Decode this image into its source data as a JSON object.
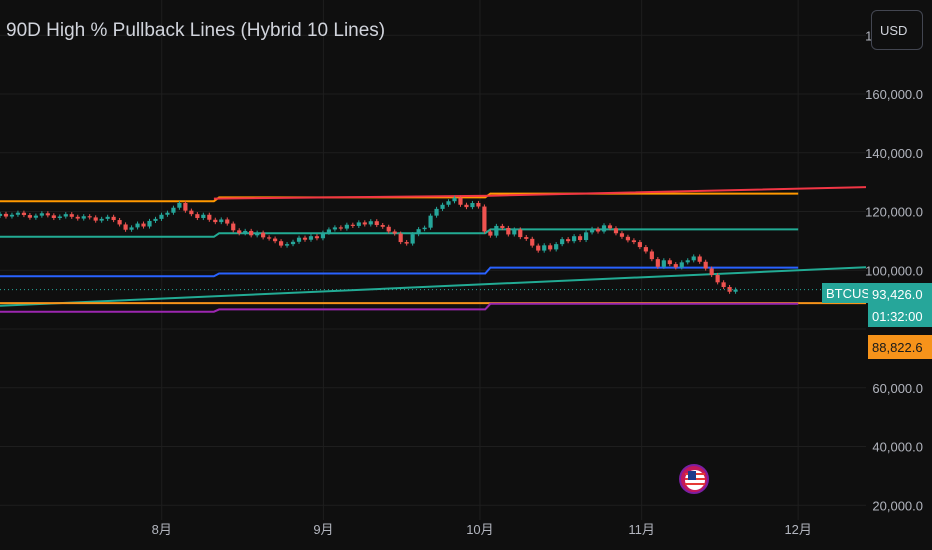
{
  "title": "90D High % Pullback Lines (Hybrid 10 Lines)",
  "currency_button": "USD",
  "symbol_tag": "BTCUSD",
  "last_price_label": "93,426.0",
  "countdown_label": "01:32:00",
  "level_label": "88,822.6",
  "event_icon": "us-flag-icon",
  "colors": {
    "background": "#0f0f0f",
    "grid": "#1e1e1e",
    "up": "#26a69a",
    "down": "#ef5350",
    "orange": "#ff9800",
    "red": "#f23645",
    "teal": "#22ab94",
    "blue": "#2962ff",
    "purple": "#9c27b0",
    "dark_orange": "#f7931a",
    "axis_text": "#b2b5be"
  },
  "chart_data": {
    "type": "candlestick",
    "y_axis": {
      "ticks": [
        "180,000.0",
        "160,000.0",
        "140,000.0",
        "120,000.0",
        "100,000.0",
        "60,000.0",
        "40,000.0",
        "20,000.0"
      ],
      "range": [
        15000,
        192000
      ]
    },
    "x_axis": {
      "ticks": [
        "8月",
        "9月",
        "10月",
        "11月",
        "12月"
      ],
      "range_days": [
        -31,
        135
      ],
      "tick_days": [
        0,
        31,
        61,
        92,
        122
      ]
    },
    "candles": [
      [
        118500,
        119200
      ],
      [
        119200,
        118300
      ],
      [
        118300,
        118900
      ],
      [
        118900,
        119600
      ],
      [
        119600,
        118800
      ],
      [
        118800,
        117900
      ],
      [
        117900,
        118600
      ],
      [
        118600,
        119400
      ],
      [
        119400,
        118700
      ],
      [
        118700,
        117800
      ],
      [
        117800,
        118300
      ],
      [
        118300,
        119100
      ],
      [
        119100,
        118200
      ],
      [
        118200,
        117600
      ],
      [
        117600,
        118400
      ],
      [
        118400,
        118000
      ],
      [
        118000,
        116900
      ],
      [
        116900,
        117500
      ],
      [
        117500,
        118200
      ],
      [
        118200,
        117100
      ],
      [
        117100,
        115600
      ],
      [
        115600,
        113800
      ],
      [
        113800,
        114600
      ],
      [
        114600,
        115900
      ],
      [
        115900,
        114900
      ],
      [
        114900,
        116800
      ],
      [
        116800,
        117500
      ],
      [
        117500,
        118900
      ],
      [
        118900,
        119600
      ],
      [
        119600,
        121300
      ],
      [
        121300,
        122900
      ],
      [
        122900,
        120300
      ],
      [
        120300,
        119100
      ],
      [
        119100,
        117800
      ],
      [
        117800,
        118900
      ],
      [
        118900,
        117200
      ],
      [
        117200,
        116400
      ],
      [
        116400,
        117300
      ],
      [
        117300,
        115900
      ],
      [
        115900,
        113600
      ],
      [
        113600,
        112600
      ],
      [
        112600,
        113400
      ],
      [
        113400,
        111900
      ],
      [
        111900,
        112800
      ],
      [
        112800,
        111200
      ],
      [
        111200,
        110800
      ],
      [
        110800,
        109900
      ],
      [
        109900,
        108400
      ],
      [
        108400,
        108900
      ],
      [
        108900,
        109700
      ],
      [
        109700,
        111100
      ],
      [
        111100,
        110400
      ],
      [
        110400,
        111600
      ],
      [
        111600,
        110900
      ],
      [
        110900,
        112800
      ],
      [
        112800,
        113900
      ],
      [
        113900,
        114600
      ],
      [
        114600,
        114200
      ],
      [
        114200,
        115500
      ],
      [
        115500,
        115100
      ],
      [
        115100,
        116300
      ],
      [
        116300,
        115600
      ],
      [
        115600,
        116700
      ],
      [
        116700,
        115400
      ],
      [
        115400,
        114800
      ],
      [
        114800,
        113200
      ],
      [
        113200,
        112500
      ],
      [
        112500,
        109600
      ],
      [
        109600,
        109100
      ],
      [
        109100,
        112300
      ],
      [
        112300,
        114000
      ],
      [
        114000,
        114500
      ],
      [
        114500,
        118600
      ],
      [
        118600,
        120900
      ],
      [
        120900,
        122300
      ],
      [
        122300,
        123500
      ],
      [
        123500,
        124700
      ],
      [
        124700,
        122300
      ],
      [
        122300,
        121500
      ],
      [
        121500,
        122900
      ],
      [
        122900,
        121700
      ],
      [
        121700,
        113200
      ],
      [
        113200,
        111800
      ],
      [
        111800,
        115100
      ],
      [
        115100,
        114400
      ],
      [
        114400,
        112200
      ],
      [
        112200,
        113900
      ],
      [
        113900,
        111300
      ],
      [
        111300,
        110700
      ],
      [
        110700,
        108400
      ],
      [
        108400,
        106700
      ],
      [
        106700,
        108500
      ],
      [
        108500,
        107100
      ],
      [
        107100,
        108900
      ],
      [
        108900,
        110600
      ],
      [
        110600,
        109900
      ],
      [
        109900,
        111600
      ],
      [
        111600,
        110300
      ],
      [
        110300,
        112900
      ],
      [
        112900,
        114100
      ],
      [
        114100,
        113200
      ],
      [
        113200,
        115300
      ],
      [
        115300,
        114300
      ],
      [
        114300,
        112600
      ],
      [
        112600,
        111400
      ],
      [
        111400,
        110200
      ],
      [
        110200,
        109600
      ],
      [
        109600,
        107900
      ],
      [
        107900,
        106400
      ],
      [
        106400,
        103800
      ],
      [
        103800,
        101200
      ],
      [
        101200,
        103400
      ],
      [
        103400,
        102100
      ],
      [
        102100,
        101000
      ],
      [
        101000,
        102700
      ],
      [
        102700,
        103400
      ],
      [
        103400,
        104700
      ],
      [
        104700,
        102900
      ],
      [
        102900,
        100600
      ],
      [
        100600,
        98400
      ],
      [
        98400,
        95900
      ],
      [
        95900,
        94300
      ],
      [
        94300,
        92700
      ],
      [
        92700,
        93426
      ]
    ],
    "lines": [
      {
        "color": "#ff9800",
        "points": [
          [
            -31,
            123500
          ],
          [
            10,
            123500
          ],
          [
            11,
            124800
          ],
          [
            62,
            124800
          ],
          [
            63,
            126100
          ],
          [
            122,
            126100
          ]
        ]
      },
      {
        "color": "#f23645",
        "points": [
          [
            10,
            124400
          ],
          [
            63,
            125400
          ],
          [
            135,
            128300
          ]
        ]
      },
      {
        "color": "#22ab94",
        "points": [
          [
            -31,
            111400
          ],
          [
            10,
            111400
          ],
          [
            11,
            112600
          ],
          [
            62,
            112600
          ],
          [
            63,
            113900
          ],
          [
            122,
            113900
          ]
        ]
      },
      {
        "color": "#2962ff",
        "points": [
          [
            -31,
            98000
          ],
          [
            10,
            98000
          ],
          [
            11,
            98900
          ],
          [
            62,
            98900
          ],
          [
            63,
            100900
          ],
          [
            122,
            100900
          ]
        ]
      },
      {
        "color": "#22ab94",
        "points": [
          [
            -31,
            87900
          ],
          [
            135,
            101000
          ]
        ]
      },
      {
        "color": "#f7931a",
        "points": [
          [
            -31,
            88822.6
          ],
          [
            135,
            88822.6
          ]
        ]
      },
      {
        "color": "#9c27b0",
        "points": [
          [
            -31,
            85900
          ],
          [
            10,
            85900
          ],
          [
            11,
            86700
          ],
          [
            62,
            86700
          ],
          [
            63,
            88600
          ],
          [
            122,
            88600
          ]
        ]
      }
    ],
    "last_price": 93426.0,
    "level": 88822.6,
    "grid": true
  }
}
